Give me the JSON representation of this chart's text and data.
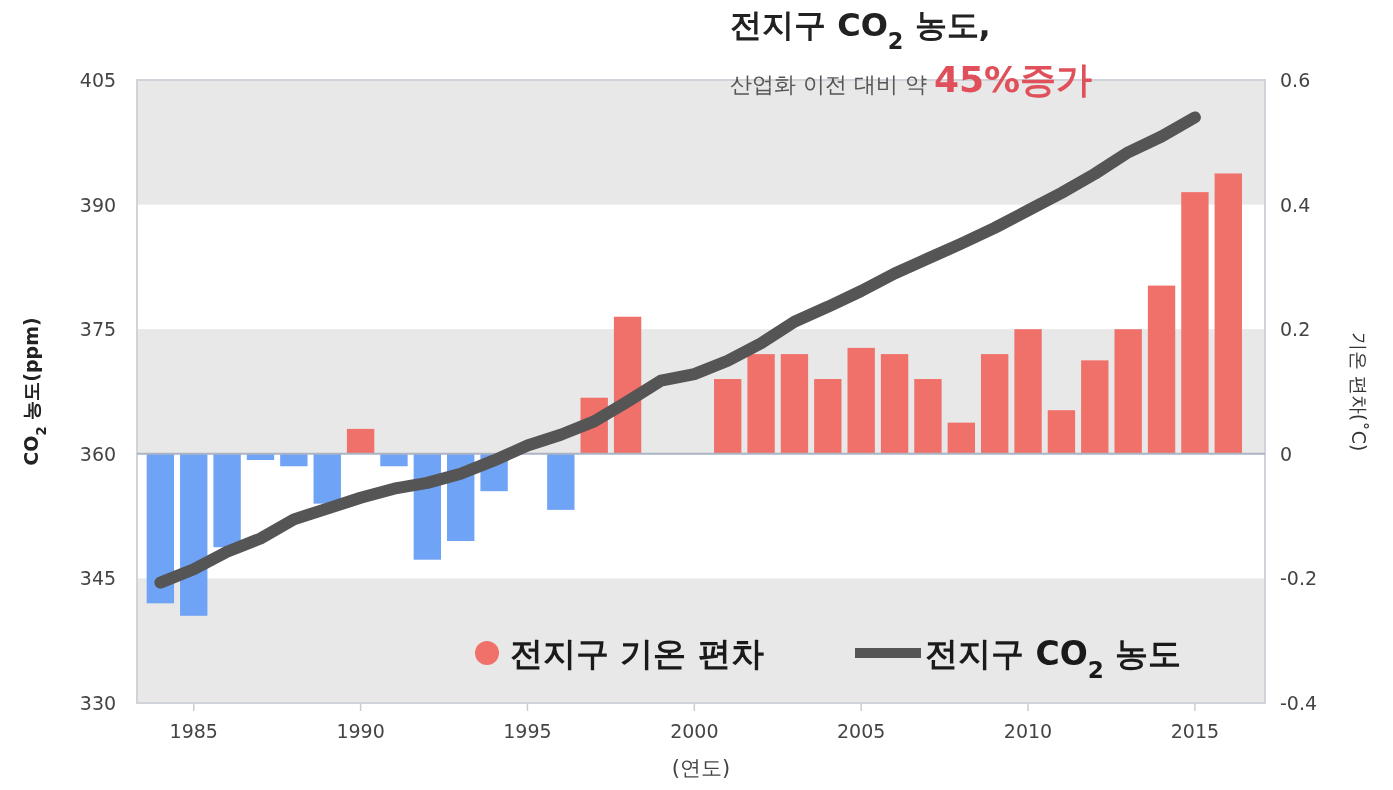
{
  "chart_data": {
    "type": "bar",
    "title": "전지구 CO$_{2}$ 농도,",
    "subtitle": "산업화 이전 대비 약 **45%증가**",
    "xlabel": "(연도)",
    "ylabel": "CO$_{2}$ 농도(ppm)",
    "y2label": "기온 편차(˚C)",
    "x": [
      1984,
      1985,
      1986,
      1987,
      1988,
      1989,
      1990,
      1991,
      1992,
      1993,
      1994,
      1995,
      1996,
      1997,
      1998,
      1999,
      2000,
      2001,
      2002,
      2003,
      2004,
      2005,
      2006,
      2007,
      2008,
      2009,
      2010,
      2011,
      2012,
      2013,
      2014,
      2015,
      2016
    ],
    "xlim": [
      1983.3,
      2017.1
    ],
    "xticks": [
      1985,
      1990,
      1995,
      2000,
      2005,
      2010,
      2015
    ],
    "ylim": [
      330,
      405
    ],
    "yticks": [
      330,
      345,
      360,
      375,
      390,
      405
    ],
    "y2lim": [
      -0.4,
      0.6
    ],
    "y2ticks": [
      {
        "value": -0.4,
        "label": "-0.4"
      },
      {
        "value": -0.2,
        "label": "-0.2"
      },
      0,
      {
        "value": 0.2,
        "label": "0.2"
      },
      {
        "value": 0.4,
        "label": "0.4"
      },
      {
        "value": 0.6,
        "label": "0.6"
      }
    ],
    "series": [
      {
        "name": "전지구 기온 편차",
        "axis": "y2",
        "color": "#f0706a",
        "colors": [
          "#6fa3f5",
          "#6fa3f5",
          "#6fa3f5",
          "#6fa3f5",
          "#6fa3f5",
          "#6fa3f5",
          "#f0706a",
          "#6fa3f5",
          "#6fa3f5",
          "#6fa3f5",
          "#6fa3f5",
          null,
          "#6fa3f5",
          "#f0706a",
          "#f0706a",
          null,
          null,
          "#f0706a",
          "#f0706a",
          "#f0706a",
          "#f0706a",
          "#f0706a",
          "#f0706a",
          "#f0706a",
          "#f0706a",
          "#f0706a",
          "#f0706a",
          "#f0706a",
          "#f0706a",
          "#f0706a",
          "#f0706a",
          "#f0706a",
          "#f0706a"
        ],
        "values": [
          -0.24,
          -0.26,
          -0.15,
          -0.01,
          -0.02,
          -0.08,
          0.04,
          -0.02,
          -0.17,
          -0.14,
          -0.06,
          null,
          -0.09,
          0.09,
          0.22,
          null,
          null,
          0.12,
          0.16,
          0.16,
          0.12,
          0.17,
          0.16,
          0.12,
          0.05,
          0.16,
          0.2,
          0.07,
          0.15,
          0.2,
          0.27,
          0.42,
          0.45
        ]
      },
      {
        "name": "전지구 CO$_{2}$ 농도",
        "type": "line",
        "color": "#555555",
        "values": [
          344.5,
          346.1,
          348.2,
          349.8,
          352.1,
          353.4,
          354.7,
          355.8,
          356.5,
          357.6,
          359.2,
          361.0,
          362.3,
          363.9,
          366.3,
          368.8,
          369.6,
          371.2,
          373.3,
          375.9,
          377.7,
          379.6,
          381.7,
          383.5,
          385.3,
          387.2,
          389.3,
          391.4,
          393.7,
          396.3,
          398.2,
          400.5,
          null
        ]
      }
    ],
    "bands": [
      {
        "axis": "y",
        "from": 390,
        "to": 405,
        "color": "#e8e8e8"
      },
      {
        "axis": "y",
        "from": 360,
        "to": 375,
        "color": "#e8e8e8"
      },
      {
        "axis": "y",
        "from": 330,
        "to": 345,
        "color": "#e8e8e8"
      }
    ],
    "ref_lines": [
      {
        "axis": "y2",
        "value": 0,
        "color": "#aab4c4"
      }
    ],
    "legend": "bottom right"
  }
}
